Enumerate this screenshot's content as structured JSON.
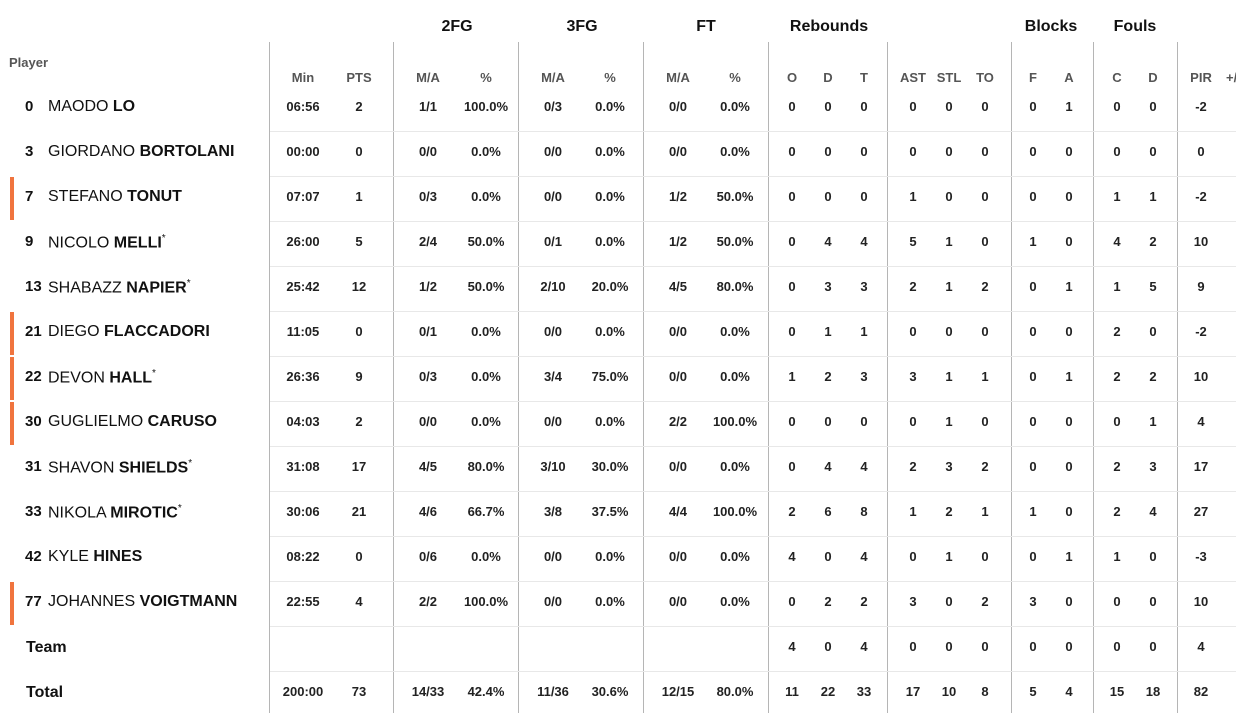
{
  "header": {
    "groups": {
      "fg2": "2FG",
      "fg3": "3FG",
      "ft": "FT",
      "reb": "Rebounds",
      "blk": "Blocks",
      "fouls": "Fouls"
    },
    "player": "Player",
    "cols": [
      "Min",
      "PTS",
      "M/A",
      "%",
      "M/A",
      "%",
      "M/A",
      "%",
      "O",
      "D",
      "T",
      "AST",
      "STL",
      "TO",
      "F",
      "A",
      "C",
      "D",
      "PIR"
    ],
    "extra": "+/"
  },
  "accent_color": "#f0743e",
  "players": [
    {
      "number": "0",
      "first": "MAODO",
      "last": "LO",
      "starter": false,
      "marked": false,
      "stats": [
        "06:56",
        "2",
        "1/1",
        "100.0%",
        "0/3",
        "0.0%",
        "0/0",
        "0.0%",
        "0",
        "0",
        "0",
        "0",
        "0",
        "0",
        "0",
        "1",
        "0",
        "0",
        "-2"
      ]
    },
    {
      "number": "3",
      "first": "GIORDANO",
      "last": "BORTOLANI",
      "starter": false,
      "marked": false,
      "stats": [
        "00:00",
        "0",
        "0/0",
        "0.0%",
        "0/0",
        "0.0%",
        "0/0",
        "0.0%",
        "0",
        "0",
        "0",
        "0",
        "0",
        "0",
        "0",
        "0",
        "0",
        "0",
        "0"
      ]
    },
    {
      "number": "7",
      "first": "STEFANO",
      "last": "TONUT",
      "starter": false,
      "marked": true,
      "stats": [
        "07:07",
        "1",
        "0/3",
        "0.0%",
        "0/0",
        "0.0%",
        "1/2",
        "50.0%",
        "0",
        "0",
        "0",
        "1",
        "0",
        "0",
        "0",
        "0",
        "1",
        "1",
        "-2"
      ]
    },
    {
      "number": "9",
      "first": "NICOLO",
      "last": "MELLI",
      "starter": true,
      "marked": false,
      "stats": [
        "26:00",
        "5",
        "2/4",
        "50.0%",
        "0/1",
        "0.0%",
        "1/2",
        "50.0%",
        "0",
        "4",
        "4",
        "5",
        "1",
        "0",
        "1",
        "0",
        "4",
        "2",
        "10"
      ]
    },
    {
      "number": "13",
      "first": "SHABAZZ",
      "last": "NAPIER",
      "starter": true,
      "marked": false,
      "stats": [
        "25:42",
        "12",
        "1/2",
        "50.0%",
        "2/10",
        "20.0%",
        "4/5",
        "80.0%",
        "0",
        "3",
        "3",
        "2",
        "1",
        "2",
        "0",
        "1",
        "1",
        "5",
        "9"
      ]
    },
    {
      "number": "21",
      "first": "DIEGO",
      "last": "FLACCADORI",
      "starter": false,
      "marked": true,
      "stats": [
        "11:05",
        "0",
        "0/1",
        "0.0%",
        "0/0",
        "0.0%",
        "0/0",
        "0.0%",
        "0",
        "1",
        "1",
        "0",
        "0",
        "0",
        "0",
        "0",
        "2",
        "0",
        "-2"
      ]
    },
    {
      "number": "22",
      "first": "DEVON",
      "last": "HALL",
      "starter": true,
      "marked": true,
      "stats": [
        "26:36",
        "9",
        "0/3",
        "0.0%",
        "3/4",
        "75.0%",
        "0/0",
        "0.0%",
        "1",
        "2",
        "3",
        "3",
        "1",
        "1",
        "0",
        "1",
        "2",
        "2",
        "10"
      ]
    },
    {
      "number": "30",
      "first": "GUGLIELMO",
      "last": "CARUSO",
      "starter": false,
      "marked": true,
      "stats": [
        "04:03",
        "2",
        "0/0",
        "0.0%",
        "0/0",
        "0.0%",
        "2/2",
        "100.0%",
        "0",
        "0",
        "0",
        "0",
        "1",
        "0",
        "0",
        "0",
        "0",
        "1",
        "4"
      ]
    },
    {
      "number": "31",
      "first": "SHAVON",
      "last": "SHIELDS",
      "starter": true,
      "marked": false,
      "stats": [
        "31:08",
        "17",
        "4/5",
        "80.0%",
        "3/10",
        "30.0%",
        "0/0",
        "0.0%",
        "0",
        "4",
        "4",
        "2",
        "3",
        "2",
        "0",
        "0",
        "2",
        "3",
        "17"
      ]
    },
    {
      "number": "33",
      "first": "NIKOLA",
      "last": "MIROTIC",
      "starter": true,
      "marked": false,
      "stats": [
        "30:06",
        "21",
        "4/6",
        "66.7%",
        "3/8",
        "37.5%",
        "4/4",
        "100.0%",
        "2",
        "6",
        "8",
        "1",
        "2",
        "1",
        "1",
        "0",
        "2",
        "4",
        "27"
      ]
    },
    {
      "number": "42",
      "first": "KYLE",
      "last": "HINES",
      "starter": false,
      "marked": false,
      "stats": [
        "08:22",
        "0",
        "0/6",
        "0.0%",
        "0/0",
        "0.0%",
        "0/0",
        "0.0%",
        "4",
        "0",
        "4",
        "0",
        "1",
        "0",
        "0",
        "1",
        "1",
        "0",
        "-3"
      ]
    },
    {
      "number": "77",
      "first": "JOHANNES",
      "last": "VOIGTMANN",
      "starter": false,
      "marked": true,
      "stats": [
        "22:55",
        "4",
        "2/2",
        "100.0%",
        "0/0",
        "0.0%",
        "0/0",
        "0.0%",
        "0",
        "2",
        "2",
        "3",
        "0",
        "2",
        "3",
        "0",
        "0",
        "0",
        "10"
      ]
    }
  ],
  "team": {
    "label": "Team",
    "stats": [
      "",
      "",
      "",
      "",
      "",
      "",
      "",
      "",
      "4",
      "0",
      "4",
      "0",
      "0",
      "0",
      "0",
      "0",
      "0",
      "0",
      "4"
    ]
  },
  "total": {
    "label": "Total",
    "stats": [
      "200:00",
      "73",
      "14/33",
      "42.4%",
      "11/36",
      "30.6%",
      "12/15",
      "80.0%",
      "11",
      "22",
      "33",
      "17",
      "10",
      "8",
      "5",
      "4",
      "15",
      "18",
      "82"
    ]
  }
}
